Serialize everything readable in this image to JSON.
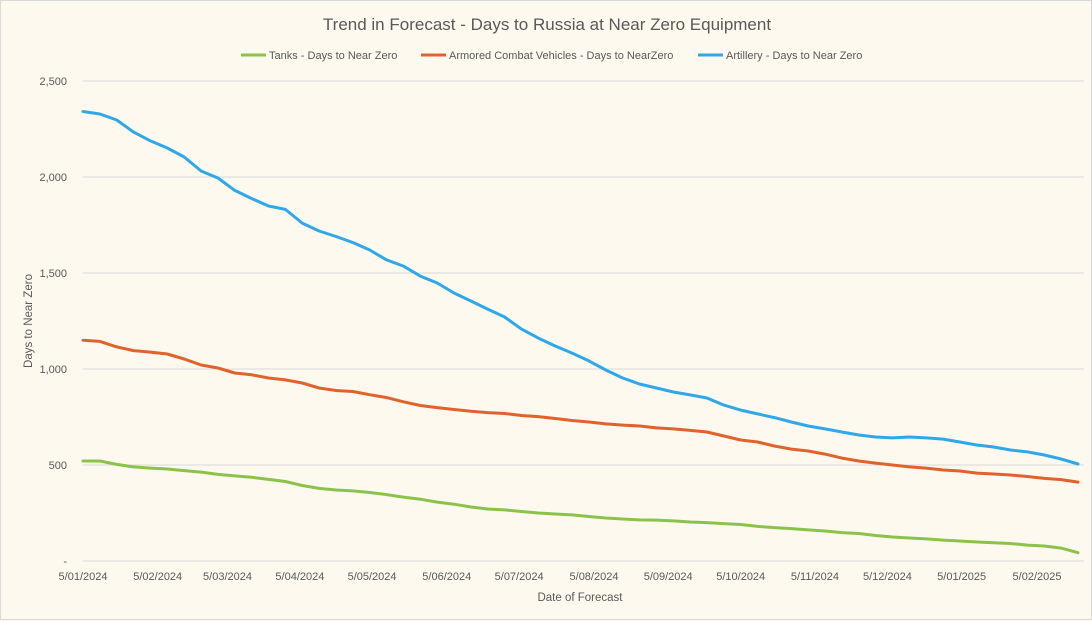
{
  "chart_data": {
    "type": "line",
    "title": "Trend in Forecast - Days to Russia at Near Zero Equipment",
    "xlabel": "Date of Forecast",
    "ylabel": "Days to Near Zero",
    "ylim": [
      0,
      2500
    ],
    "yticks": [
      0,
      500,
      1000,
      1500,
      2000,
      2500
    ],
    "ytick_labels": [
      "-",
      "500",
      "1,000",
      "1,500",
      "2,000",
      "2,500"
    ],
    "grid": true,
    "legend_position": "top",
    "x_axis": {
      "start_label": "5/01/2024",
      "interval": "weekly",
      "tick_labels": [
        "5/01/2024",
        "5/02/2024",
        "5/03/2024",
        "5/04/2024",
        "5/05/2024",
        "5/06/2024",
        "5/07/2024",
        "5/08/2024",
        "5/09/2024",
        "5/10/2024",
        "5/11/2024",
        "5/12/2024",
        "5/01/2025",
        "5/02/2025"
      ],
      "tick_positions_weeks": [
        0,
        4.43,
        8.57,
        12.86,
        17.14,
        21.57,
        25.86,
        30.3,
        34.7,
        39.0,
        43.4,
        47.7,
        52.1,
        56.57
      ],
      "num_points": 60
    },
    "series": [
      {
        "name": "Tanks - Days to Near Zero",
        "color": "#8bc34a",
        "values": [
          521,
          521,
          503,
          490,
          484,
          479,
          471,
          463,
          451,
          443,
          436,
          425,
          414,
          393,
          378,
          370,
          365,
          357,
          346,
          333,
          322,
          307,
          296,
          281,
          271,
          266,
          258,
          250,
          245,
          240,
          232,
          224,
          219,
          214,
          213,
          209,
          203,
          200,
          195,
          190,
          180,
          174,
          169,
          162,
          156,
          148,
          143,
          133,
          125,
          120,
          115,
          109,
          104,
          99,
          95,
          91,
          83,
          78,
          67,
          43
        ]
      },
      {
        "name": "Armored Combat Vehicles - Days to NearZero",
        "color": "#e2622b",
        "values": [
          1150,
          1144,
          1115,
          1096,
          1088,
          1078,
          1052,
          1021,
          1005,
          979,
          970,
          953,
          943,
          927,
          901,
          888,
          883,
          866,
          851,
          829,
          810,
          799,
          789,
          780,
          773,
          768,
          758,
          752,
          742,
          732,
          724,
          714,
          708,
          703,
          693,
          688,
          680,
          672,
          651,
          630,
          620,
          599,
          583,
          573,
          557,
          536,
          521,
          510,
          500,
          490,
          484,
          474,
          469,
          458,
          453,
          448,
          440,
          430,
          424,
          411
        ]
      },
      {
        "name": "Artillery - Days to Near Zero",
        "color": "#2fa8e8",
        "values": [
          2341,
          2328,
          2297,
          2234,
          2188,
          2151,
          2104,
          2031,
          1995,
          1930,
          1888,
          1849,
          1831,
          1760,
          1719,
          1690,
          1659,
          1620,
          1568,
          1536,
          1484,
          1448,
          1396,
          1354,
          1312,
          1271,
          1208,
          1161,
          1120,
          1083,
          1042,
          995,
          953,
          922,
          901,
          880,
          865,
          849,
          812,
          786,
          766,
          747,
          724,
          703,
          688,
          672,
          656,
          646,
          641,
          646,
          641,
          635,
          620,
          604,
          594,
          578,
          568,
          552,
          531,
          505
        ]
      }
    ]
  }
}
